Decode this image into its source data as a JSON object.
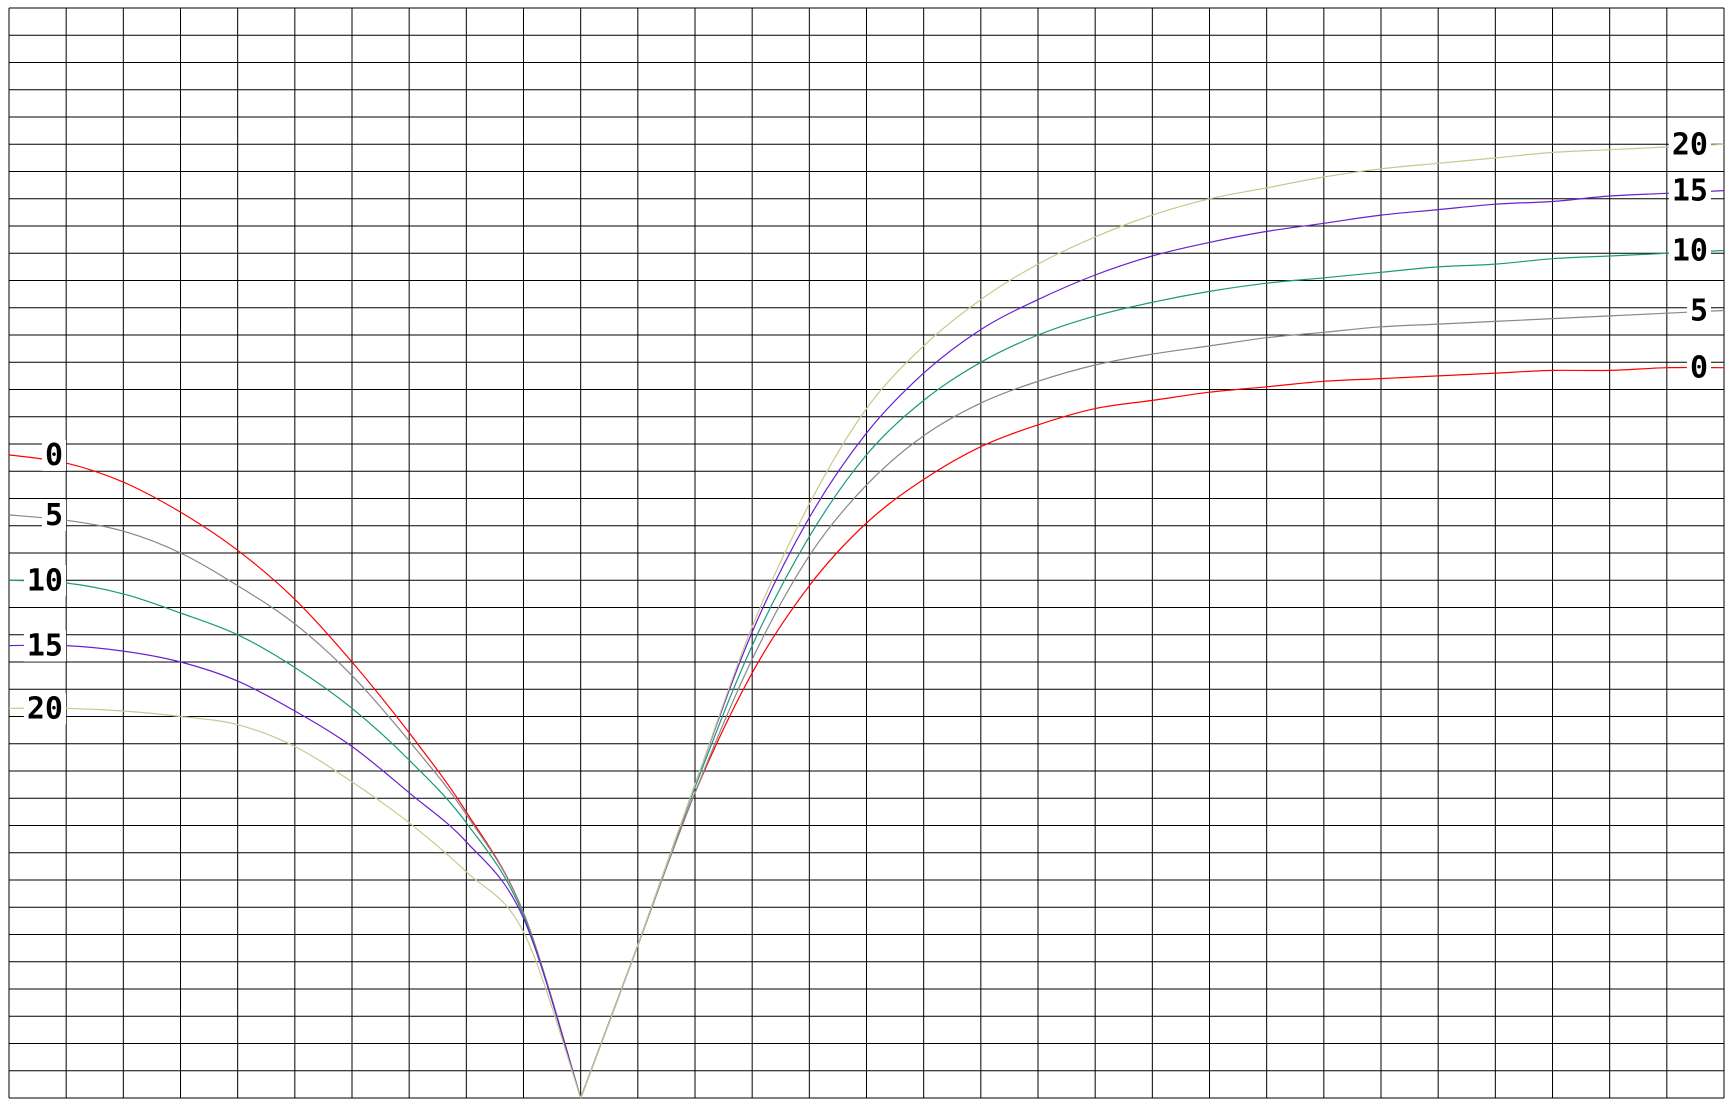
{
  "chart_data": {
    "type": "line",
    "title": "",
    "xlabel": "",
    "ylabel": "",
    "grid": true,
    "grid_columns": 30,
    "grid_rows": 40,
    "xlim": [
      0,
      30
    ],
    "ylim": [
      0,
      40
    ],
    "series": [
      {
        "name": "0",
        "color": "#ff0000",
        "left_points": [
          [
            0,
            23.6
          ],
          [
            1,
            23.3
          ],
          [
            2,
            22.6
          ],
          [
            3,
            21.5
          ],
          [
            4,
            20.1
          ],
          [
            5,
            18.3
          ],
          [
            6,
            16.0
          ],
          [
            7,
            13.4
          ],
          [
            8,
            10.5
          ],
          [
            9,
            6.8
          ],
          [
            10,
            0
          ]
        ],
        "right_points": [
          [
            10,
            0
          ],
          [
            11,
            5.6
          ],
          [
            12,
            11.2
          ],
          [
            13,
            15.6
          ],
          [
            14,
            18.8
          ],
          [
            15,
            21.1
          ],
          [
            16,
            22.7
          ],
          [
            17,
            23.9
          ],
          [
            18,
            24.7
          ],
          [
            19,
            25.3
          ],
          [
            20,
            25.6
          ],
          [
            21,
            25.9
          ],
          [
            22,
            26.1
          ],
          [
            23,
            26.3
          ],
          [
            24,
            26.4
          ],
          [
            25,
            26.5
          ],
          [
            26,
            26.6
          ],
          [
            27,
            26.7
          ],
          [
            28,
            26.7
          ],
          [
            29,
            26.8
          ],
          [
            30,
            26.8
          ]
        ]
      },
      {
        "name": "5",
        "color": "#888888",
        "left_points": [
          [
            0,
            21.4
          ],
          [
            1,
            21.2
          ],
          [
            2,
            20.8
          ],
          [
            3,
            20.0
          ],
          [
            4,
            18.8
          ],
          [
            5,
            17.4
          ],
          [
            6,
            15.5
          ],
          [
            7,
            13.1
          ],
          [
            8,
            10.4
          ],
          [
            9,
            6.8
          ],
          [
            10,
            0
          ]
        ],
        "right_points": [
          [
            10,
            0
          ],
          [
            11,
            5.6
          ],
          [
            12,
            11.2
          ],
          [
            13,
            16.1
          ],
          [
            14,
            19.9
          ],
          [
            15,
            22.5
          ],
          [
            16,
            24.3
          ],
          [
            17,
            25.5
          ],
          [
            18,
            26.3
          ],
          [
            19,
            26.9
          ],
          [
            20,
            27.3
          ],
          [
            21,
            27.6
          ],
          [
            22,
            27.9
          ],
          [
            23,
            28.1
          ],
          [
            24,
            28.3
          ],
          [
            25,
            28.4
          ],
          [
            26,
            28.5
          ],
          [
            27,
            28.6
          ],
          [
            28,
            28.7
          ],
          [
            29,
            28.8
          ],
          [
            30,
            28.9
          ]
        ]
      },
      {
        "name": "10",
        "color": "#1a9a7a",
        "left_points": [
          [
            0,
            19.0
          ],
          [
            1,
            18.9
          ],
          [
            2,
            18.5
          ],
          [
            3,
            17.8
          ],
          [
            4,
            17.0
          ],
          [
            5,
            15.8
          ],
          [
            6,
            14.3
          ],
          [
            7,
            12.4
          ],
          [
            8,
            10.1
          ],
          [
            9,
            6.7
          ],
          [
            10,
            0
          ]
        ],
        "right_points": [
          [
            10,
            0
          ],
          [
            11,
            5.6
          ],
          [
            12,
            11.4
          ],
          [
            13,
            16.6
          ],
          [
            14,
            20.6
          ],
          [
            15,
            23.6
          ],
          [
            16,
            25.6
          ],
          [
            17,
            27.0
          ],
          [
            18,
            28.0
          ],
          [
            19,
            28.7
          ],
          [
            20,
            29.2
          ],
          [
            21,
            29.6
          ],
          [
            22,
            29.9
          ],
          [
            23,
            30.1
          ],
          [
            24,
            30.3
          ],
          [
            25,
            30.5
          ],
          [
            26,
            30.6
          ],
          [
            27,
            30.8
          ],
          [
            28,
            30.9
          ],
          [
            29,
            31.0
          ],
          [
            30,
            31.1
          ]
        ]
      },
      {
        "name": "15",
        "color": "#6a1fd0",
        "left_points": [
          [
            0,
            16.6
          ],
          [
            1,
            16.6
          ],
          [
            2,
            16.4
          ],
          [
            3,
            16.0
          ],
          [
            4,
            15.3
          ],
          [
            5,
            14.2
          ],
          [
            6,
            12.9
          ],
          [
            7,
            11.2
          ],
          [
            8,
            9.4
          ],
          [
            9,
            6.6
          ],
          [
            10,
            0
          ]
        ],
        "right_points": [
          [
            10,
            0
          ],
          [
            11,
            5.6
          ],
          [
            12,
            11.5
          ],
          [
            13,
            17.1
          ],
          [
            14,
            21.3
          ],
          [
            15,
            24.4
          ],
          [
            16,
            26.6
          ],
          [
            17,
            28.2
          ],
          [
            18,
            29.3
          ],
          [
            19,
            30.2
          ],
          [
            20,
            30.9
          ],
          [
            21,
            31.4
          ],
          [
            22,
            31.8
          ],
          [
            23,
            32.1
          ],
          [
            24,
            32.4
          ],
          [
            25,
            32.6
          ],
          [
            26,
            32.8
          ],
          [
            27,
            32.9
          ],
          [
            28,
            33.1
          ],
          [
            29,
            33.2
          ],
          [
            30,
            33.3
          ]
        ]
      },
      {
        "name": "20",
        "color": "#c8c890",
        "left_points": [
          [
            0,
            14.3
          ],
          [
            1,
            14.3
          ],
          [
            2,
            14.2
          ],
          [
            3,
            14.0
          ],
          [
            4,
            13.7
          ],
          [
            5,
            12.9
          ],
          [
            6,
            11.6
          ],
          [
            7,
            10.1
          ],
          [
            8,
            8.3
          ],
          [
            9,
            6.1
          ],
          [
            10,
            0
          ]
        ],
        "right_points": [
          [
            10,
            0
          ],
          [
            11,
            5.6
          ],
          [
            12,
            11.5
          ],
          [
            13,
            17.3
          ],
          [
            14,
            21.8
          ],
          [
            15,
            25.3
          ],
          [
            16,
            27.6
          ],
          [
            17,
            29.3
          ],
          [
            18,
            30.6
          ],
          [
            19,
            31.6
          ],
          [
            20,
            32.4
          ],
          [
            21,
            33.0
          ],
          [
            22,
            33.4
          ],
          [
            23,
            33.8
          ],
          [
            24,
            34.1
          ],
          [
            25,
            34.3
          ],
          [
            26,
            34.5
          ],
          [
            27,
            34.7
          ],
          [
            28,
            34.8
          ],
          [
            29,
            34.9
          ],
          [
            30,
            35.0
          ]
        ]
      }
    ]
  }
}
